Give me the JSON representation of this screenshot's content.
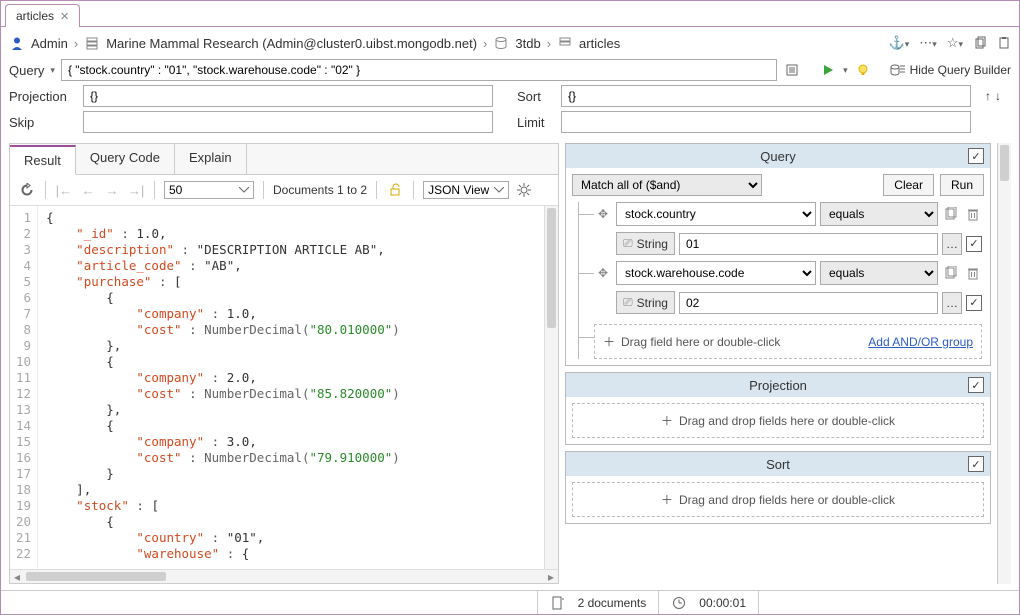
{
  "tab": {
    "title": "articles"
  },
  "breadcrumb": {
    "user": "Admin",
    "connection": "Marine Mammal Research (Admin@cluster0.uibst.mongodb.net)",
    "database": "3tdb",
    "collection": "articles"
  },
  "toolbar": {
    "query_label": "Query",
    "query_value": "{ \"stock.country\" : \"01\", \"stock.warehouse.code\" : \"02\" }",
    "projection_label": "Projection",
    "projection_value": "{}",
    "sort_label": "Sort",
    "sort_value": "{}",
    "skip_label": "Skip",
    "skip_value": "",
    "limit_label": "Limit",
    "limit_value": "",
    "hide_builder": "Hide Query Builder"
  },
  "tabs": {
    "result": "Result",
    "querycode": "Query Code",
    "explain": "Explain"
  },
  "result_toolbar": {
    "page_size": "50",
    "documents_range": "Documents 1 to 2",
    "view_mode": "JSON View"
  },
  "document": {
    "lines": [
      "{",
      "    \"_id\" : 1.0,",
      "    \"description\" : \"DESCRIPTION ARTICLE AB\",",
      "    \"article_code\" : \"AB\",",
      "    \"purchase\" : [",
      "        {",
      "            \"company\" : 1.0,",
      "            \"cost\" : NumberDecimal(\"80.010000\")",
      "        },",
      "        {",
      "            \"company\" : 2.0,",
      "            \"cost\" : NumberDecimal(\"85.820000\")",
      "        },",
      "        {",
      "            \"company\" : 3.0,",
      "            \"cost\" : NumberDecimal(\"79.910000\")",
      "        }",
      "    ],",
      "    \"stock\" : [",
      "        {",
      "            \"country\" : \"01\",",
      "            \"warehouse\" : {"
    ],
    "colors": {
      "key": "#d14b1f",
      "string": "#2a8c2a",
      "number": "#1c6cd6",
      "punct": "#555555"
    }
  },
  "builder": {
    "query_title": "Query",
    "match_mode": "Match all of ($and)",
    "clear": "Clear",
    "run": "Run",
    "conditions": [
      {
        "field": "stock.country",
        "operator": "equals",
        "type": "String",
        "value": "01",
        "enabled": true
      },
      {
        "field": "stock.warehouse.code",
        "operator": "equals",
        "type": "String",
        "value": "02",
        "enabled": true
      }
    ],
    "drop_field": "Drag field here or double-click",
    "add_group": "Add AND/OR group",
    "projection_title": "Projection",
    "projection_drop": "Drag and drop fields here or double-click",
    "sort_title": "Sort",
    "sort_drop": "Drag and drop fields here or double-click"
  },
  "status": {
    "doc_count": "2 documents",
    "elapsed": "00:00:01"
  },
  "colors": {
    "frame_border": "#b38bb3",
    "section_head": "#d9e6f0",
    "tab_active_accent": "#9b4f9b",
    "play_icon": "#3aa53a",
    "bulb_icon": "#e0b400"
  }
}
